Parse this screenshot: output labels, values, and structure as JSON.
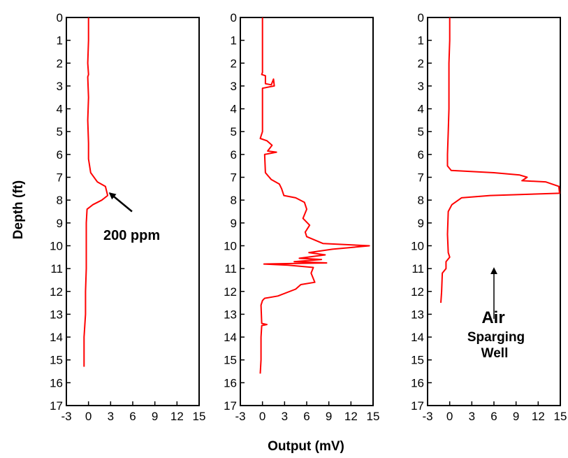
{
  "chart_data": {
    "type": "line",
    "ylabel": "Depth (ft)",
    "xlabel": "Output (mV)",
    "y_ticks": [
      "0",
      "1",
      "2",
      "3",
      "4",
      "5",
      "6",
      "7",
      "8",
      "9",
      "10",
      "11",
      "12",
      "13",
      "14",
      "15",
      "16",
      "17"
    ],
    "x_ticks": [
      "-3",
      "0",
      "3",
      "6",
      "9",
      "12",
      "15"
    ],
    "xlim": [
      -3,
      15
    ],
    "ylim": [
      17,
      0
    ],
    "y_inverted": true,
    "grid": false,
    "line_color": "#ff0000",
    "panels": [
      {
        "points": [
          [
            0,
            0
          ],
          [
            0,
            1
          ],
          [
            -0.1,
            2
          ],
          [
            0,
            2.5
          ],
          [
            -0.1,
            2.6
          ],
          [
            0,
            3.5
          ],
          [
            -0.1,
            4.5
          ],
          [
            0,
            5.5
          ],
          [
            0,
            6.2
          ],
          [
            0.3,
            6.8
          ],
          [
            1.2,
            7.2
          ],
          [
            2.3,
            7.4
          ],
          [
            2.6,
            7.8
          ],
          [
            1.8,
            8.0
          ],
          [
            0.6,
            8.2
          ],
          [
            -0.2,
            8.4
          ],
          [
            -0.3,
            9
          ],
          [
            -0.3,
            10
          ],
          [
            -0.3,
            11
          ],
          [
            -0.4,
            12
          ],
          [
            -0.4,
            13
          ],
          [
            -0.6,
            14
          ],
          [
            -0.6,
            15.3
          ]
        ],
        "annotations": [
          {
            "text": "200 ppm",
            "arrow_from": [
              5.9,
              8.5
            ],
            "arrow_to": [
              2.9,
              7.7
            ]
          }
        ]
      },
      {
        "points": [
          [
            0,
            0
          ],
          [
            0,
            1
          ],
          [
            0,
            2
          ],
          [
            0,
            2.4
          ],
          [
            -0.1,
            2.5
          ],
          [
            0.4,
            2.55
          ],
          [
            0.4,
            2.9
          ],
          [
            1.2,
            2.95
          ],
          [
            1.5,
            2.7
          ],
          [
            1.6,
            3.0
          ],
          [
            0,
            3.1
          ],
          [
            0,
            4
          ],
          [
            0,
            5
          ],
          [
            -0.3,
            5.3
          ],
          [
            0.6,
            5.4
          ],
          [
            1.3,
            5.6
          ],
          [
            0.7,
            5.85
          ],
          [
            1.9,
            5.9
          ],
          [
            0.3,
            6.0
          ],
          [
            0.4,
            6.8
          ],
          [
            1.2,
            7.1
          ],
          [
            2.3,
            7.3
          ],
          [
            2.6,
            7.5
          ],
          [
            2.9,
            7.8
          ],
          [
            4.5,
            7.9
          ],
          [
            5.7,
            8.1
          ],
          [
            6.0,
            8.4
          ],
          [
            5.5,
            8.8
          ],
          [
            6.4,
            9.1
          ],
          [
            5.8,
            9.4
          ],
          [
            6.0,
            9.6
          ],
          [
            8.2,
            9.9
          ],
          [
            14.5,
            10.0
          ],
          [
            9.5,
            10.15
          ],
          [
            6.3,
            10.3
          ],
          [
            8.5,
            10.4
          ],
          [
            5.0,
            10.55
          ],
          [
            8.0,
            10.6
          ],
          [
            4.3,
            10.7
          ],
          [
            8.7,
            10.75
          ],
          [
            0.2,
            10.8
          ],
          [
            3.5,
            10.85
          ],
          [
            6.9,
            10.95
          ],
          [
            6.6,
            11.2
          ],
          [
            7.1,
            11.6
          ],
          [
            5.2,
            11.7
          ],
          [
            4.5,
            11.9
          ],
          [
            2.1,
            12.2
          ],
          [
            0.3,
            12.3
          ],
          [
            0,
            12.4
          ],
          [
            -0.2,
            12.6
          ],
          [
            -0.1,
            13.4
          ],
          [
            0.6,
            13.45
          ],
          [
            -0.1,
            13.5
          ],
          [
            -0.2,
            14
          ],
          [
            -0.2,
            15
          ],
          [
            -0.3,
            15.6
          ]
        ],
        "annotations": []
      },
      {
        "points": [
          [
            0,
            0
          ],
          [
            0,
            1
          ],
          [
            -0.1,
            2
          ],
          [
            -0.1,
            4
          ],
          [
            -0.2,
            5
          ],
          [
            -0.3,
            6
          ],
          [
            -0.3,
            6.5
          ],
          [
            0.2,
            6.7
          ],
          [
            6.0,
            6.8
          ],
          [
            9.5,
            6.9
          ],
          [
            10.5,
            7.0
          ],
          [
            9.8,
            7.15
          ],
          [
            13.0,
            7.2
          ],
          [
            14.8,
            7.4
          ],
          [
            14.9,
            7.7
          ],
          [
            5.5,
            7.8
          ],
          [
            1.6,
            7.9
          ],
          [
            0.3,
            8.2
          ],
          [
            -0.2,
            8.5
          ],
          [
            -0.3,
            9.5
          ],
          [
            -0.2,
            10.3
          ],
          [
            0,
            10.5
          ],
          [
            -0.5,
            10.7
          ],
          [
            -0.5,
            11.0
          ],
          [
            -1.0,
            11.2
          ],
          [
            -1.1,
            12
          ],
          [
            -1.2,
            12.5
          ]
        ],
        "annotations": [
          {
            "text": "Air",
            "size": "large",
            "arrow_from": [
              6,
              13.2
            ],
            "arrow_to": [
              6,
              11.0
            ]
          },
          {
            "text": "Sparging",
            "size": "medium"
          },
          {
            "text": "Well",
            "size": "medium"
          }
        ]
      }
    ]
  }
}
